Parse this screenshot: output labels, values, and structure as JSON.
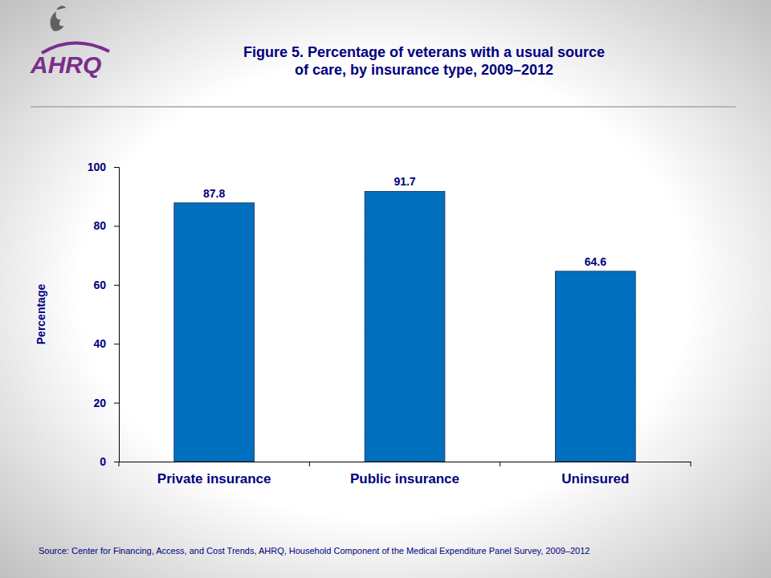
{
  "chart_data": {
    "type": "bar",
    "title": "Figure 5. Percentage of veterans with a usual source\nof care, by insurance type, 2009–2012",
    "categories": [
      "Private insurance",
      "Public insurance",
      "Uninsured"
    ],
    "values": [
      87.8,
      91.7,
      64.6
    ],
    "color": "#0070c0",
    "ylabel": "Percentage",
    "ylim": [
      0,
      100
    ],
    "yticks": [
      0,
      20,
      40,
      60,
      80,
      100
    ],
    "grid": false,
    "data_labels": true,
    "annotations": [
      "AHRQ",
      "Source: Center for Financing, Access, and Cost Trends, AHRQ, Household Component of the Medical Expenditure Panel Survey, 2009–2012"
    ]
  }
}
